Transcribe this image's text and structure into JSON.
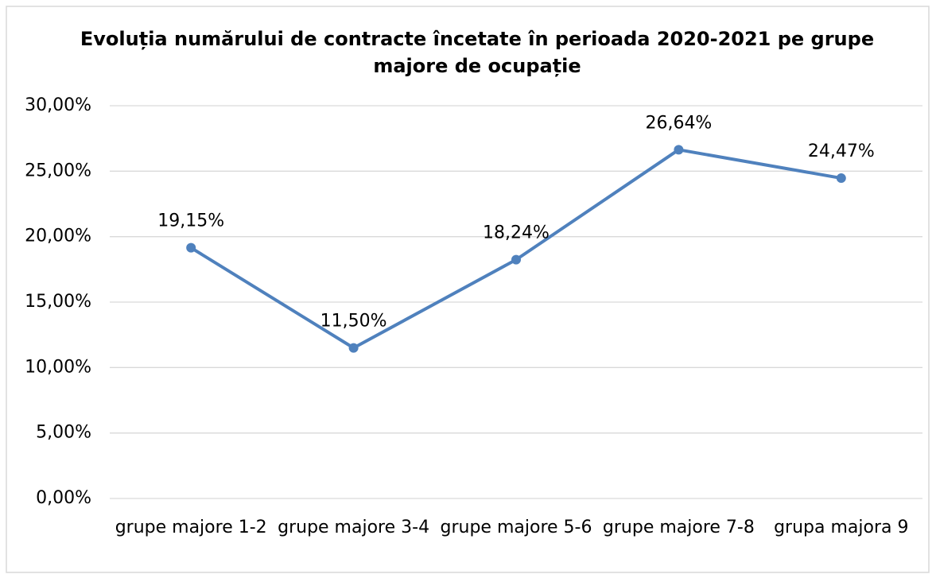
{
  "chart_data": {
    "type": "line",
    "title": "Evoluția numărului de contracte încetate în perioada 2020-2021 pe grupe majore de ocupație",
    "categories": [
      "grupe majore 1-2",
      "grupe majore 3-4",
      "grupe majore 5-6",
      "grupe majore 7-8",
      "grupa majora 9"
    ],
    "values": [
      19.15,
      11.5,
      18.24,
      26.64,
      24.47
    ],
    "value_labels": [
      "19,15%",
      "11,50%",
      "18,24%",
      "26,64%",
      "24,47%"
    ],
    "color": "#4f81bd",
    "ylim": [
      0,
      30
    ],
    "yticks": [
      {
        "value": 0,
        "label": "0,00%"
      },
      {
        "value": 5,
        "label": "5,00%"
      },
      {
        "value": 10,
        "label": "10,00%"
      },
      {
        "value": 15,
        "label": "15,00%"
      },
      {
        "value": 20,
        "label": "20,00%"
      },
      {
        "value": 25,
        "label": "25,00%"
      },
      {
        "value": 30,
        "label": "30,00%"
      }
    ],
    "grid": true
  }
}
